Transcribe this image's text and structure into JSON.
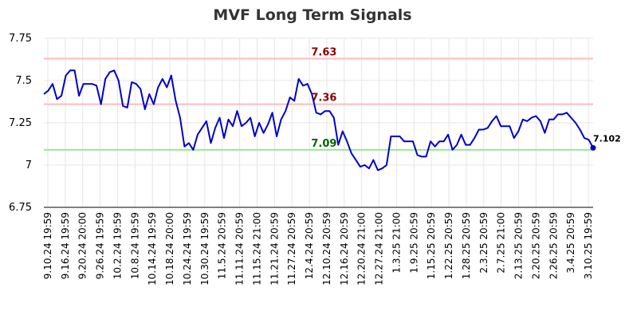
{
  "chart_data": {
    "type": "line",
    "title": "MVF Long Term Signals",
    "xlabel": "",
    "ylabel": "",
    "ylim": [
      6.75,
      7.75
    ],
    "yticks": [
      {
        "value": 6.75,
        "label": "6.75"
      },
      {
        "value": 7.0,
        "label": "7"
      },
      {
        "value": 7.25,
        "label": "7.25"
      },
      {
        "value": 7.5,
        "label": "7.5"
      },
      {
        "value": 7.75,
        "label": "7.75"
      }
    ],
    "xtick_labels": [
      "9.10.24 19:59",
      "9.16.24 19:59",
      "9.20.24 20:00",
      "9.26.24 19:59",
      "10.2.24 19:59",
      "10.8.24 19:59",
      "10.14.24 19:59",
      "10.18.24 20:00",
      "10.24.24 19:59",
      "10.30.24 19:59",
      "11.5.24 20:59",
      "11.11.24 20:59",
      "11.15.24 21:00",
      "11.21.24 20:59",
      "11.27.24 20:59",
      "12.4.24 20:59",
      "12.10.24 20:59",
      "12.16.24 20:59",
      "12.20.24 21:00",
      "12.27.24 21:00",
      "1.3.25 21:00",
      "1.9.25 20:59",
      "1.15.25 20:59",
      "1.22.25 20:59",
      "1.28.25 20:59",
      "2.3.25 20:59",
      "2.7.25 21:00",
      "2.13.25 20:59",
      "2.20.25 20:59",
      "2.26.25 20:59",
      "3.4.25 20:59",
      "3.10.25 19:59"
    ],
    "grid": true,
    "legend": "none",
    "series_color": "#0000cc",
    "values": [
      7.42,
      7.44,
      7.48,
      7.39,
      7.41,
      7.53,
      7.56,
      7.56,
      7.41,
      7.48,
      7.48,
      7.48,
      7.47,
      7.36,
      7.51,
      7.55,
      7.56,
      7.5,
      7.35,
      7.34,
      7.49,
      7.48,
      7.45,
      7.33,
      7.42,
      7.36,
      7.46,
      7.51,
      7.46,
      7.53,
      7.38,
      7.28,
      7.11,
      7.13,
      7.09,
      7.18,
      7.22,
      7.26,
      7.13,
      7.22,
      7.28,
      7.16,
      7.27,
      7.23,
      7.32,
      7.23,
      7.25,
      7.28,
      7.17,
      7.25,
      7.19,
      7.24,
      7.31,
      7.17,
      7.27,
      7.32,
      7.4,
      7.38,
      7.51,
      7.47,
      7.48,
      7.42,
      7.31,
      7.3,
      7.32,
      7.32,
      7.28,
      7.12,
      7.2,
      7.14,
      7.07,
      7.03,
      6.99,
      7.0,
      6.98,
      7.03,
      6.97,
      6.98,
      7.0,
      7.17,
      7.17,
      7.17,
      7.14,
      7.14,
      7.14,
      7.06,
      7.05,
      7.05,
      7.14,
      7.11,
      7.14,
      7.14,
      7.18,
      7.09,
      7.12,
      7.18,
      7.12,
      7.12,
      7.16,
      7.21,
      7.21,
      7.22,
      7.26,
      7.29,
      7.23,
      7.23,
      7.23,
      7.16,
      7.2,
      7.27,
      7.26,
      7.28,
      7.29,
      7.26,
      7.19,
      7.27,
      7.27,
      7.3,
      7.3,
      7.31,
      7.28,
      7.25,
      7.21,
      7.16,
      7.15,
      7.102
    ],
    "last_value": {
      "value": 7.102,
      "label": "7.102"
    },
    "levels": [
      {
        "value": 7.63,
        "label": "7.63",
        "line_color": "#ffbbbb",
        "text_color": "#8b0000"
      },
      {
        "value": 7.36,
        "label": "7.36",
        "line_color": "#ffbbbb",
        "text_color": "#8b0000"
      },
      {
        "value": 7.09,
        "label": "7.09",
        "line_color": "#99e699",
        "text_color": "#006400"
      }
    ]
  }
}
